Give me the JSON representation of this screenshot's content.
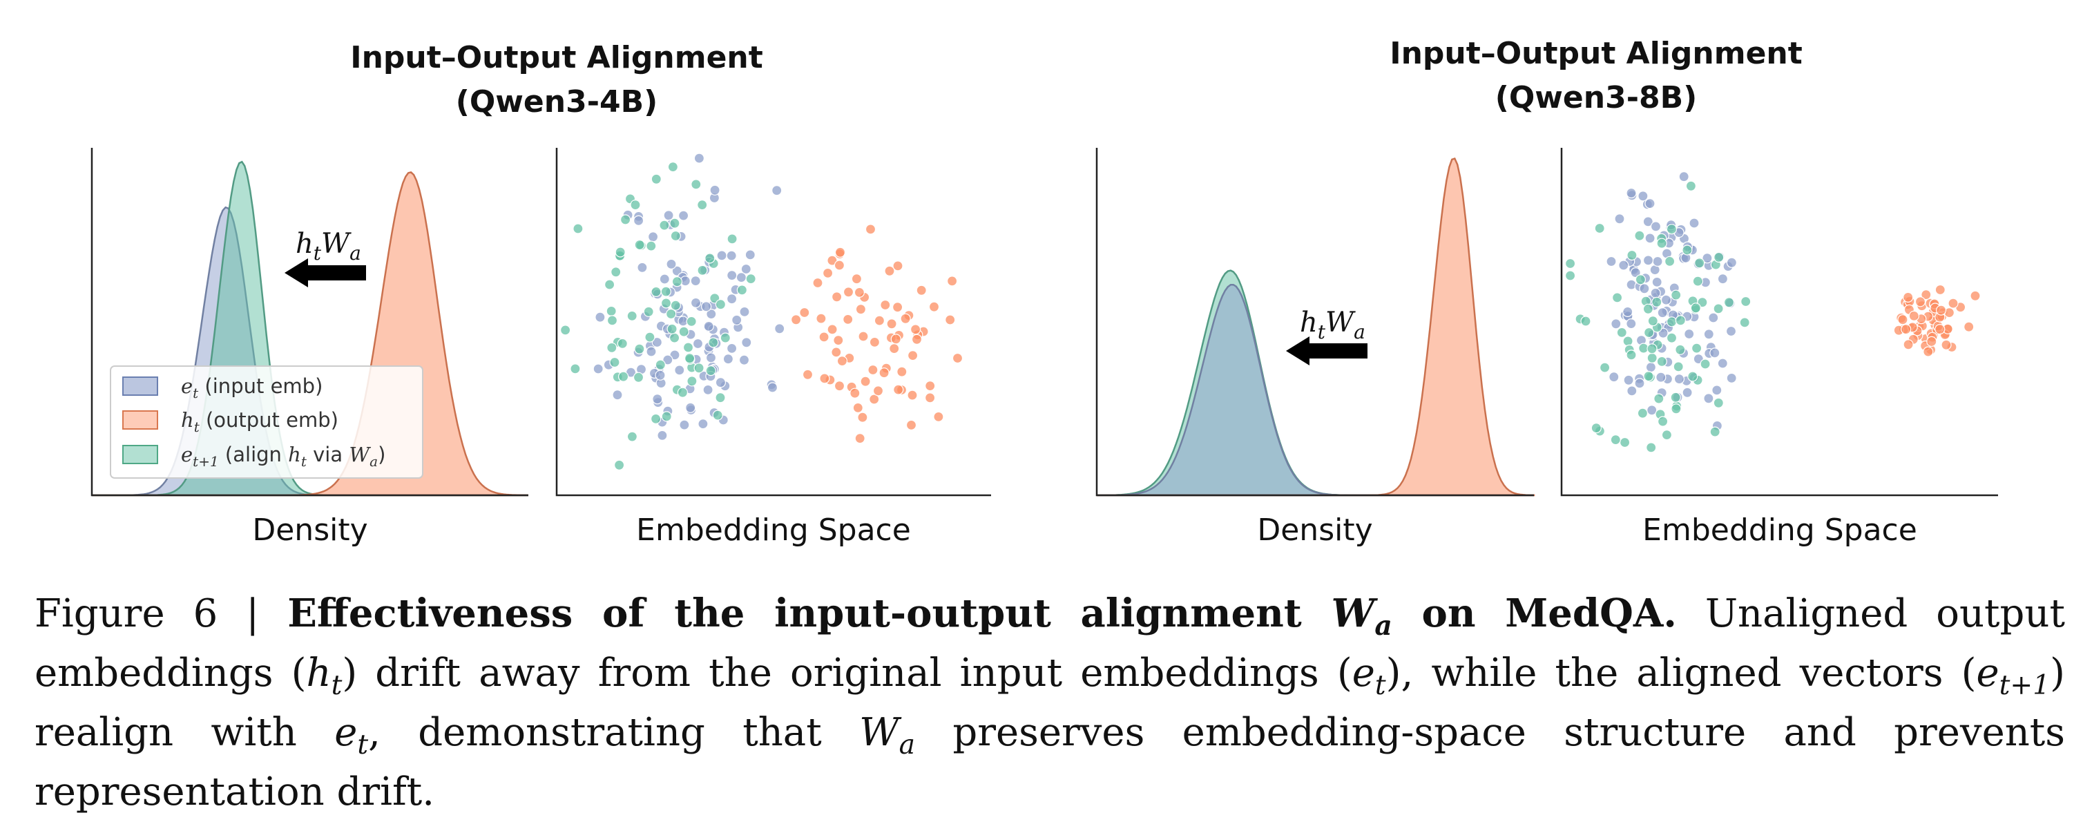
{
  "chart_data": [
    {
      "type": "density",
      "panel": "left",
      "title_line1": "Input–Output Alignment",
      "title_line2": "(Qwen3-4B)",
      "xlabel": "Density",
      "annotation": "h_tW_a",
      "legend": {
        "placement": "lower-left",
        "entries": [
          {
            "sym": "e",
            "sub": "t",
            "rest": " (input emb)"
          },
          {
            "sym": "h",
            "sub": "t",
            "rest": " (output emb)"
          },
          {
            "sym": "e",
            "sub": "t+1",
            "rest": " (align ",
            "sym2": "h",
            "sub2": "t",
            "rest2": " via ",
            "sym3": "W",
            "sub3": "a",
            "rest3": ")"
          }
        ]
      },
      "series": [
        {
          "name": "e_t (input emb)",
          "color": "#8da0cb",
          "center": 0.3,
          "spread": 0.055,
          "peak": 0.82
        },
        {
          "name": "e_t+1 (align h_t via W_a)",
          "color": "#66c2a5",
          "center": 0.335,
          "spread": 0.05,
          "peak": 0.95
        },
        {
          "name": "h_t (output emb)",
          "color": "#fc8d62",
          "center": 0.72,
          "spread": 0.065,
          "peak": 0.92
        }
      ]
    },
    {
      "type": "scatter",
      "panel": "left",
      "xlabel": "Embedding Space",
      "clusters": [
        {
          "name": "e_t",
          "color": "#8da0cb",
          "cx": 0.31,
          "cy": 0.5,
          "sx": 0.085,
          "sy": 0.19,
          "n": 110,
          "seed": 11
        },
        {
          "name": "e_t+1",
          "color": "#66c2a5",
          "cx": 0.24,
          "cy": 0.52,
          "sx": 0.09,
          "sy": 0.17,
          "n": 70,
          "seed": 23
        },
        {
          "name": "h_t",
          "color": "#fc8d62",
          "cx": 0.74,
          "cy": 0.45,
          "sx": 0.08,
          "sy": 0.13,
          "n": 70,
          "seed": 37
        }
      ]
    },
    {
      "type": "density",
      "panel": "right",
      "title_line1": "Input–Output Alignment",
      "title_line2": "(Qwen3-8B)",
      "xlabel": "Density",
      "annotation": "h_tW_a",
      "series": [
        {
          "name": "e_t+1",
          "color": "#66c2a5",
          "center": 0.295,
          "spread": 0.07,
          "peak": 0.64
        },
        {
          "name": "e_t",
          "color": "#8da0cb",
          "center": 0.3,
          "spread": 0.068,
          "peak": 0.6
        },
        {
          "name": "h_t",
          "color": "#fc8d62",
          "center": 0.81,
          "spread": 0.045,
          "peak": 0.96
        }
      ]
    },
    {
      "type": "scatter",
      "panel": "right",
      "xlabel": "Embedding Space",
      "clusters": [
        {
          "name": "e_t",
          "color": "#8da0cb",
          "cx": 0.24,
          "cy": 0.55,
          "sx": 0.075,
          "sy": 0.17,
          "n": 110,
          "seed": 51
        },
        {
          "name": "e_t+1",
          "color": "#66c2a5",
          "cx": 0.22,
          "cy": 0.48,
          "sx": 0.085,
          "sy": 0.19,
          "n": 70,
          "seed": 63
        },
        {
          "name": "h_t",
          "color": "#fc8d62",
          "cx": 0.84,
          "cy": 0.5,
          "sx": 0.045,
          "sy": 0.045,
          "n": 60,
          "seed": 77
        }
      ]
    }
  ],
  "caption": {
    "prefix": "Figure 6 | ",
    "bold_a": "Effectiveness of the input-output alignment ",
    "bold_sym": "W",
    "bold_sub": "a",
    "bold_b": " on MedQA.",
    "t1": " Unaligned output embeddings (",
    "s1": "h",
    "s1sub": "t",
    "t2": ") drift away from the original input embeddings (",
    "s2": "e",
    "s2sub": "t",
    "t3": "), while the aligned vectors (",
    "s3": "e",
    "s3sub": "t+1",
    "t4": ") realign with ",
    "s4": "e",
    "s4sub": "t",
    "t5": ", demonstrating that ",
    "s5": "W",
    "s5sub": "a",
    "t6": " preserves embedding-space structure and prevents representation drift."
  }
}
